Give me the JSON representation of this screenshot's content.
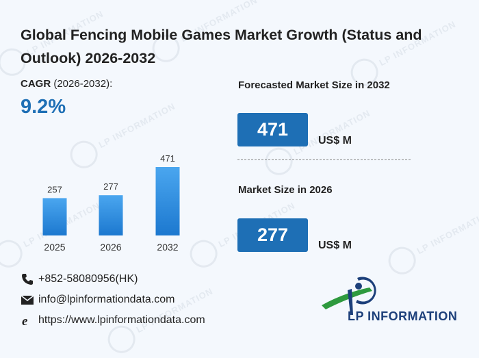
{
  "header": {
    "title": "Global Fencing Mobile Games Market Growth (Status and Outlook) 2026-2032"
  },
  "cagr": {
    "label_bold": "CAGR",
    "label_rest": " (2026-2032):",
    "value": "9.2%"
  },
  "forecast": {
    "label": "Forecasted Market Size in 2032",
    "value": "471",
    "unit": "US$ M"
  },
  "current": {
    "label": "Market Size in 2026",
    "value": "277",
    "unit": "US$ M"
  },
  "contact": {
    "phone": "+852-58080956(HK)",
    "email": "info@lpinformationdata.com",
    "website": "https://www.lpinformationdata.com"
  },
  "logo": {
    "text": "LP INFORMATION"
  },
  "watermark": "LP INFORMATION",
  "colors": {
    "accent": "#1e6fb5",
    "bar_top": "#4aa6ef",
    "bar_bottom": "#1c78cf",
    "logo_green": "#2e9a3e",
    "logo_blue": "#1c3f7a"
  },
  "chart_data": {
    "type": "bar",
    "categories": [
      "2025",
      "2026",
      "2032"
    ],
    "values": [
      257,
      277,
      471
    ],
    "data_labels": [
      "257",
      "277",
      "471"
    ],
    "ylim": [
      0,
      471
    ]
  }
}
